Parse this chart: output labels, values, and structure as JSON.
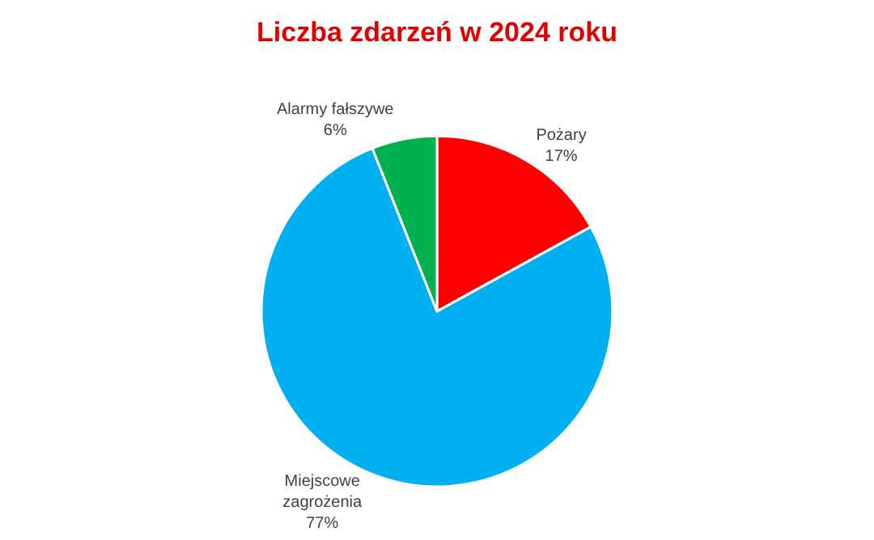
{
  "chart_data": {
    "type": "pie",
    "title": "Liczba zdarzeń w 2024 roku",
    "categories": [
      "Pożary",
      "Miejscowe zagrożenia",
      "Alarmy fałszywe"
    ],
    "values": [
      17,
      77,
      6
    ],
    "value_labels": [
      "17%",
      "77%",
      "6%"
    ],
    "colors": [
      "#ff0000",
      "#00b0f0",
      "#00b050"
    ],
    "legend": false
  }
}
